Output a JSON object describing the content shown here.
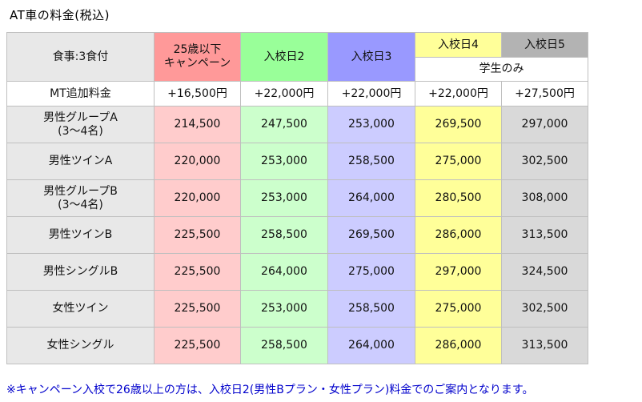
{
  "title": "AT車の料金(税込)",
  "table": {
    "corner_label": "食事:3食付",
    "columns": [
      {
        "line1": "25歳以下",
        "line2": "キャンペーン"
      },
      {
        "line1": "入校日2"
      },
      {
        "line1": "入校日3"
      },
      {
        "line1": "入校日4"
      },
      {
        "line1": "入校日5"
      }
    ],
    "student_only": "学生のみ",
    "mt_label": "MT追加料金",
    "mt_values": [
      "+16,500円",
      "+22,000円",
      "+22,000円",
      "+22,000円",
      "+27,500円"
    ],
    "rows": [
      {
        "label1": "男性グループA",
        "label2": "(3〜4名)",
        "values": [
          "214,500",
          "247,500",
          "253,000",
          "269,500",
          "297,000"
        ]
      },
      {
        "label1": "男性ツインA",
        "label2": "",
        "values": [
          "220,000",
          "253,000",
          "258,500",
          "275,000",
          "302,500"
        ]
      },
      {
        "label1": "男性グループB",
        "label2": "(3〜4名)",
        "values": [
          "220,000",
          "253,000",
          "264,000",
          "280,500",
          "308,000"
        ]
      },
      {
        "label1": "男性ツインB",
        "label2": "",
        "values": [
          "225,500",
          "258,500",
          "269,500",
          "286,000",
          "313,500"
        ]
      },
      {
        "label1": "男性シングルB",
        "label2": "",
        "values": [
          "225,500",
          "264,000",
          "275,000",
          "297,000",
          "324,500"
        ]
      },
      {
        "label1": "女性ツイン",
        "label2": "",
        "values": [
          "225,500",
          "253,000",
          "258,500",
          "275,000",
          "302,500"
        ]
      },
      {
        "label1": "女性シングル",
        "label2": "",
        "values": [
          "225,500",
          "258,500",
          "264,000",
          "286,000",
          "313,500"
        ]
      }
    ]
  },
  "footnote": "※キャンペーン入校で26歳以上の方は、入校日2(男性Bプラン・女性プラン)料金でのご案内となります。"
}
